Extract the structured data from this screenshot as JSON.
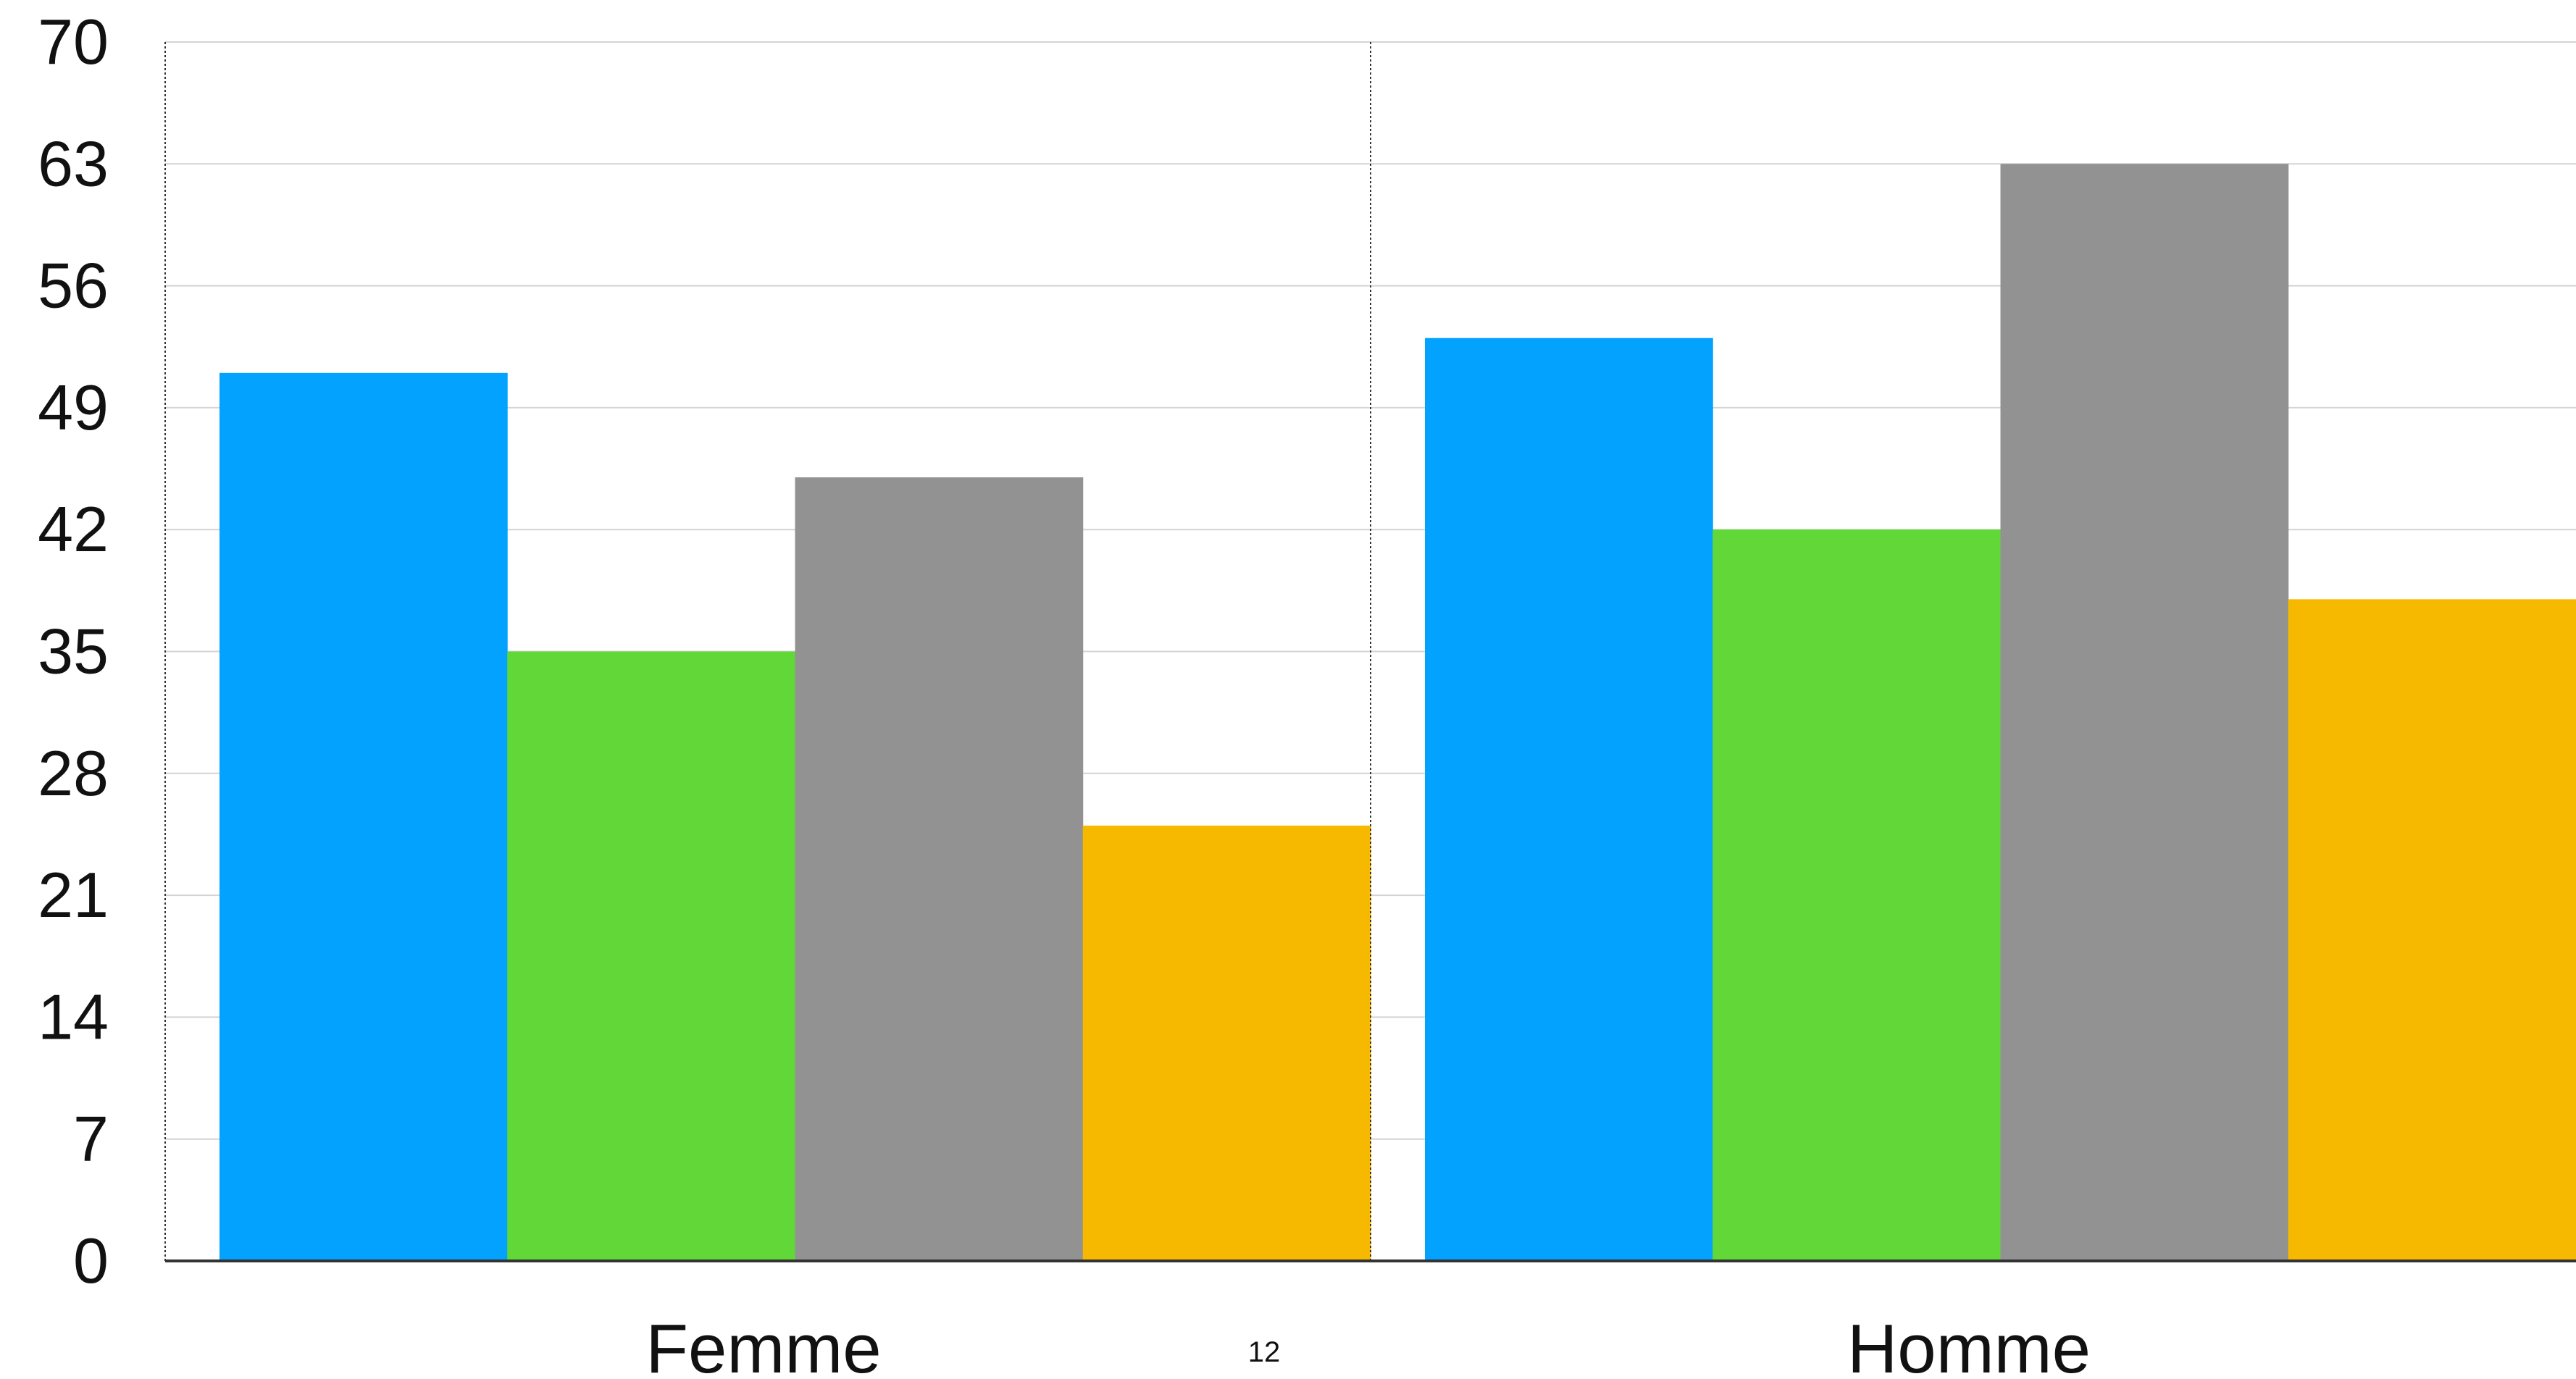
{
  "page_number": "12",
  "colors": {
    "series": [
      "#02a2fe",
      "#62d838",
      "#929292",
      "#f7b900"
    ],
    "grid": "#d4d4d4",
    "axis": "#333333"
  },
  "chart_data": {
    "type": "bar",
    "title": "",
    "xlabel": "",
    "ylabel": "",
    "categories": [
      "Femme",
      "Homme"
    ],
    "series": [
      {
        "values": [
          51,
          53
        ]
      },
      {
        "values": [
          35,
          42
        ]
      },
      {
        "values": [
          45,
          63
        ]
      },
      {
        "values": [
          25,
          38
        ]
      }
    ],
    "ylim": [
      0,
      70
    ],
    "yticks": [
      0,
      7,
      14,
      21,
      28,
      35,
      42,
      49,
      56,
      63,
      70
    ],
    "grid": true,
    "legend": "none"
  }
}
